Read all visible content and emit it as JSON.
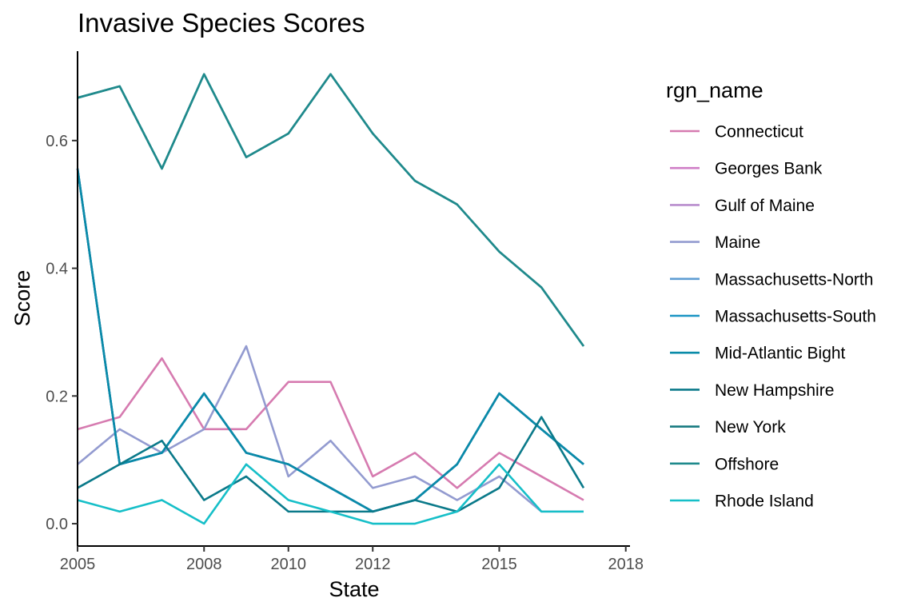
{
  "chart_data": {
    "type": "line",
    "title": "Invasive Species Scores",
    "xlabel": "State",
    "ylabel": "Score",
    "xlim": [
      2005,
      2018.1
    ],
    "ylim": [
      -0.035,
      0.74
    ],
    "x_ticks": [
      2005,
      2008,
      2010,
      2012,
      2015,
      2018
    ],
    "y_ticks": [
      0.0,
      0.2,
      0.4,
      0.6
    ],
    "y_tick_labels": [
      "0.0",
      "0.2",
      "0.4",
      "0.6"
    ],
    "grid": false,
    "legend": {
      "title": "rgn_name",
      "position": "right"
    },
    "x": [
      2005,
      2006,
      2007,
      2008,
      2009,
      2010,
      2011,
      2012,
      2013,
      2014,
      2015,
      2016,
      2017
    ],
    "series": [
      {
        "name": "Connecticut",
        "color": "#D67BB0",
        "values": [
          0.148,
          0.167,
          0.259,
          0.148,
          0.148,
          0.222,
          0.222,
          0.074,
          0.111,
          0.056,
          0.111,
          0.074,
          0.037
        ]
      },
      {
        "name": "Georges Bank",
        "color": "#CF7EC6",
        "values": [
          0.556,
          0.093,
          0.111,
          0.204,
          0.111,
          0.093,
          0.056,
          0.019,
          0.037,
          0.093,
          0.204,
          0.148,
          0.093
        ]
      },
      {
        "name": "Gulf of Maine",
        "color": "#B88DCD",
        "values": [
          0.556,
          0.093,
          0.111,
          0.204,
          0.111,
          0.093,
          0.056,
          0.019,
          0.037,
          0.093,
          0.204,
          0.148,
          0.093
        ]
      },
      {
        "name": "Maine",
        "color": "#939BD0",
        "values": [
          0.093,
          0.148,
          0.111,
          0.148,
          0.278,
          0.074,
          0.13,
          0.056,
          0.074,
          0.037,
          0.074,
          0.019,
          0.019
        ]
      },
      {
        "name": "Massachusetts-North",
        "color": "#5E9DD3",
        "values": [
          0.556,
          0.093,
          0.111,
          0.204,
          0.111,
          0.093,
          0.056,
          0.019,
          0.037,
          0.093,
          0.204,
          0.148,
          0.093
        ]
      },
      {
        "name": "Massachusetts-South",
        "color": "#1B95C4",
        "values": [
          0.556,
          0.093,
          0.111,
          0.204,
          0.111,
          0.093,
          0.056,
          0.019,
          0.037,
          0.093,
          0.204,
          0.148,
          0.093
        ]
      },
      {
        "name": "Mid-Atlantic Bight",
        "color": "#0A8BA8",
        "values": [
          0.556,
          0.093,
          0.111,
          0.204,
          0.111,
          0.093,
          0.056,
          0.019,
          0.037,
          0.093,
          0.204,
          0.148,
          0.093
        ]
      },
      {
        "name": "New Hampshire",
        "color": "#0B7A8A",
        "values": [
          0.056,
          0.093,
          0.13,
          0.037,
          0.074,
          0.019,
          0.019,
          0.019,
          0.037,
          0.019,
          0.056,
          0.167,
          0.056
        ]
      },
      {
        "name": "New York",
        "color": "#177A80",
        "values": [
          0.667,
          0.685,
          0.556,
          0.704,
          0.574,
          0.611,
          0.704,
          0.611,
          0.537,
          0.5,
          0.426,
          0.37,
          0.278
        ]
      },
      {
        "name": "Offshore",
        "color": "#1F8A8C",
        "values": [
          0.667,
          0.685,
          0.556,
          0.704,
          0.574,
          0.611,
          0.704,
          0.611,
          0.537,
          0.5,
          0.426,
          0.37,
          0.278
        ]
      },
      {
        "name": "Rhode Island",
        "color": "#16BFC8",
        "values": [
          0.037,
          0.019,
          0.037,
          0.0,
          0.093,
          0.037,
          0.019,
          0.0,
          0.0,
          0.019,
          0.093,
          0.019,
          0.019
        ]
      }
    ]
  }
}
